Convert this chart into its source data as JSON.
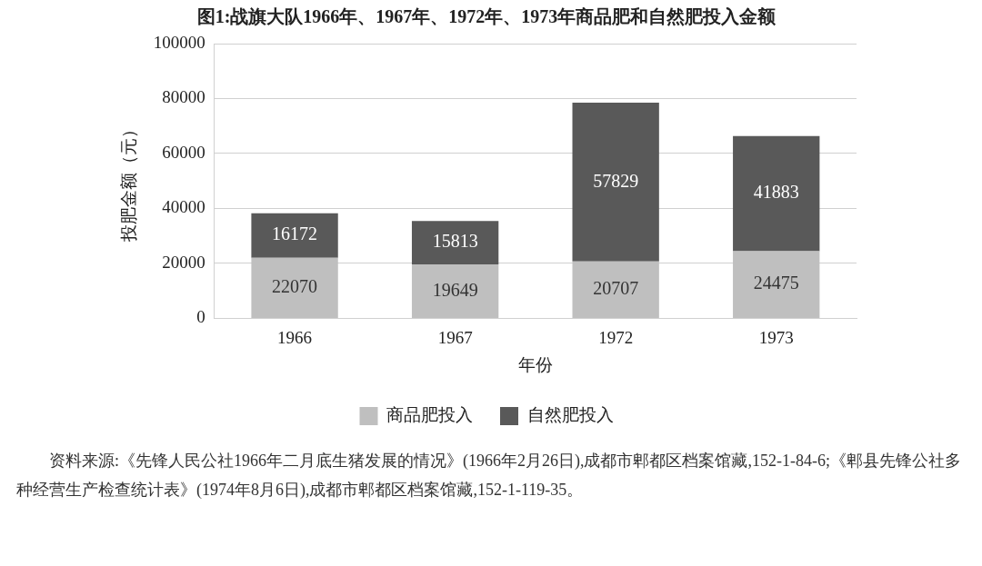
{
  "chart_data": {
    "type": "bar",
    "title": "图1:战旗大队1966年、1967年、1972年、1973年商品肥和自然肥投入金额",
    "xlabel": "年份",
    "ylabel": "投肥金额（元）",
    "categories": [
      "1966",
      "1967",
      "1972",
      "1973"
    ],
    "series": [
      {
        "name": "商品肥投入",
        "color": "#bfbfbf",
        "values": [
          22070,
          19649,
          20707,
          24475
        ]
      },
      {
        "name": "自然肥投入",
        "color": "#595959",
        "values": [
          16172,
          15813,
          57829,
          41883
        ]
      }
    ],
    "stacked": true,
    "data_labels": true,
    "ylim": [
      0,
      100000
    ],
    "yticks": [
      0,
      20000,
      40000,
      60000,
      80000,
      100000
    ],
    "grid": "y",
    "legend": "bottom",
    "annotations": [
      "资料来源:《先锋人民公社1966年二月底生猪发展的情况》(1966年2月26日),成都市郫都区档案馆藏,152-1-84-6;《郫县先锋公社多种经营生产检查统计表》(1974年8月6日),成都市郫都区档案馆藏,152-1-119-35。"
    ]
  }
}
